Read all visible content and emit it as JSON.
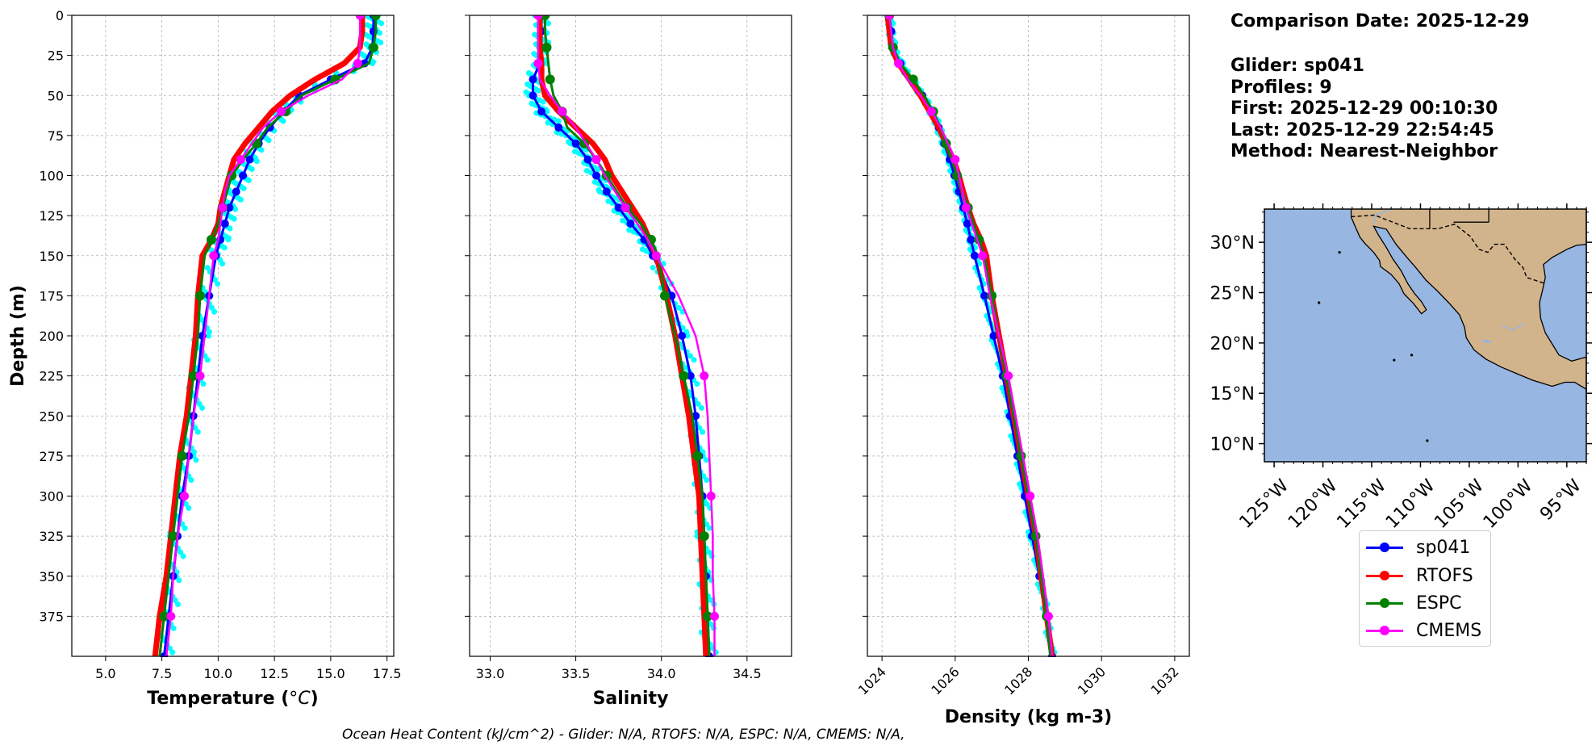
{
  "info": {
    "comparison_date": "Comparison Date: 2025-12-29",
    "glider": "Glider: sp041",
    "profiles": "Profiles: 9",
    "first": "First: 2025-12-29 00:10:30",
    "last": "Last: 2025-12-29 22:54:45",
    "method": "Method: Nearest-Neighbor"
  },
  "footer": {
    "ohc": "Ocean Heat Content (kJ/cm^2) - Glider: N/A,  RTOFS: N/A,  ESPC: N/A,  CMEMS: N/A,"
  },
  "colors": {
    "glider": "#0000ff",
    "glider_raw": "#00ffff",
    "rtofs": "#ff0000",
    "espc": "#008000",
    "cmems": "#ff00ff",
    "ocean": "#97b6e1",
    "land": "#d2b48c"
  },
  "legend": [
    {
      "label": "sp041",
      "color": "#0000ff"
    },
    {
      "label": "RTOFS",
      "color": "#ff0000"
    },
    {
      "label": "ESPC",
      "color": "#008000"
    },
    {
      "label": "CMEMS",
      "color": "#ff00ff"
    }
  ],
  "chart_data": [
    {
      "type": "line",
      "xlabel": "Temperature (°C)",
      "ylabel": "Depth (m)",
      "xlim": [
        3.5,
        17.8
      ],
      "ylim": [
        400,
        0
      ],
      "xticks": [
        5.0,
        7.5,
        10.0,
        12.5,
        15.0,
        17.5
      ],
      "xtick_labels": [
        "5.0",
        "7.5",
        "10.0",
        "12.5",
        "15.0",
        "17.5"
      ],
      "yticks": [
        0,
        25,
        50,
        75,
        100,
        125,
        150,
        175,
        200,
        225,
        250,
        275,
        300,
        325,
        350,
        375
      ],
      "ytick_labels": [
        "0",
        "25",
        "50",
        "75",
        "100",
        "125",
        "150",
        "175",
        "200",
        "225",
        "250",
        "275",
        "300",
        "325",
        "350",
        "375"
      ],
      "grid": true,
      "depths": [
        0,
        10,
        20,
        30,
        40,
        50,
        60,
        70,
        80,
        90,
        100,
        110,
        120,
        130,
        140,
        150,
        175,
        200,
        225,
        250,
        275,
        300,
        325,
        350,
        375,
        400
      ],
      "series": [
        {
          "name": "sp041",
          "values": [
            16.9,
            16.9,
            16.85,
            16.5,
            15.0,
            13.6,
            12.9,
            12.3,
            11.8,
            11.4,
            11.1,
            10.8,
            10.5,
            10.3,
            10.1,
            9.9,
            9.6,
            9.3,
            9.1,
            8.9,
            8.7,
            8.4,
            8.2,
            8.0,
            7.8,
            7.6
          ],
          "markers": true
        },
        {
          "name": "RTOFS",
          "values": [
            16.4,
            16.4,
            16.3,
            15.6,
            14.3,
            13.2,
            12.4,
            11.8,
            11.2,
            10.7,
            10.5,
            10.3,
            10.1,
            10.0,
            9.7,
            9.3,
            9.1,
            9.0,
            8.8,
            8.6,
            8.3,
            8.1,
            7.9,
            7.7,
            7.4,
            7.2
          ],
          "markers": false
        },
        {
          "name": "ESPC",
          "values": [
            17.0,
            17.0,
            16.9,
            16.7,
            15.2,
            13.7,
            13.0,
            12.2,
            11.7,
            11.1,
            10.6,
            10.4,
            10.2,
            10.0,
            9.7,
            9.4,
            9.2,
            9.1,
            8.9,
            8.7,
            8.4,
            8.2,
            8.0,
            7.8,
            7.6,
            7.4
          ],
          "markers": true
        },
        {
          "name": "CMEMS",
          "values": [
            16.3,
            16.3,
            16.3,
            16.2,
            15.5,
            14.0,
            12.8,
            12.0,
            11.5,
            11.0,
            10.5,
            10.3,
            10.2,
            10.1,
            10.0,
            9.8,
            9.6,
            9.4,
            9.2,
            8.9,
            8.7,
            8.5,
            8.2,
            8.0,
            7.9,
            7.7
          ],
          "markers": true
        }
      ]
    },
    {
      "type": "line",
      "xlabel": "Salinity",
      "ylabel": "",
      "xlim": [
        32.88,
        34.76
      ],
      "ylim": [
        400,
        0
      ],
      "xticks": [
        33.0,
        33.5,
        34.0,
        34.5
      ],
      "xtick_labels": [
        "33.0",
        "33.5",
        "34.0",
        "34.5"
      ],
      "grid": true,
      "depths": [
        0,
        10,
        20,
        30,
        40,
        50,
        60,
        70,
        80,
        90,
        100,
        110,
        120,
        130,
        140,
        150,
        175,
        200,
        225,
        250,
        275,
        300,
        325,
        350,
        375,
        400
      ],
      "series": [
        {
          "name": "sp041",
          "values": [
            33.3,
            33.3,
            33.3,
            33.29,
            33.25,
            33.25,
            33.3,
            33.4,
            33.5,
            33.57,
            33.62,
            33.68,
            33.75,
            33.82,
            33.9,
            33.95,
            34.06,
            34.12,
            34.17,
            34.2,
            34.22,
            34.24,
            34.25,
            34.26,
            34.27,
            34.28
          ],
          "markers": true
        },
        {
          "name": "RTOFS",
          "values": [
            33.29,
            33.29,
            33.29,
            33.3,
            33.3,
            33.32,
            33.4,
            33.5,
            33.6,
            33.67,
            33.71,
            33.77,
            33.83,
            33.89,
            33.93,
            33.97,
            34.03,
            34.08,
            34.12,
            34.16,
            34.19,
            34.22,
            34.23,
            34.24,
            34.25,
            34.26
          ],
          "markers": false
        },
        {
          "name": "ESPC",
          "values": [
            33.32,
            33.32,
            33.33,
            33.34,
            33.35,
            33.37,
            33.42,
            33.45,
            33.55,
            33.62,
            33.68,
            33.74,
            33.8,
            33.88,
            33.94,
            33.98,
            34.02,
            34.08,
            34.13,
            34.18,
            34.21,
            34.24,
            34.25,
            34.26,
            34.27,
            34.28
          ],
          "markers": true
        },
        {
          "name": "CMEMS",
          "values": [
            33.28,
            33.28,
            33.28,
            33.28,
            33.29,
            33.35,
            33.42,
            33.5,
            33.56,
            33.62,
            33.67,
            33.73,
            33.79,
            33.86,
            33.92,
            33.97,
            34.1,
            34.2,
            34.25,
            34.27,
            34.28,
            34.29,
            34.3,
            34.3,
            34.31,
            34.31
          ],
          "markers": true
        }
      ]
    },
    {
      "type": "line",
      "xlabel": "Density (kg m-3)",
      "ylabel": "",
      "xlim": [
        1023.6,
        1032.4
      ],
      "ylim": [
        400,
        0
      ],
      "xticks": [
        1024,
        1026,
        1028,
        1030,
        1032
      ],
      "xtick_labels": [
        "1024",
        "1026",
        "1028",
        "1030",
        "1032"
      ],
      "grid": true,
      "depths": [
        0,
        10,
        20,
        30,
        40,
        50,
        60,
        70,
        80,
        90,
        100,
        110,
        120,
        130,
        140,
        150,
        175,
        200,
        225,
        250,
        275,
        300,
        325,
        350,
        375,
        400
      ],
      "series": [
        {
          "name": "sp041",
          "values": [
            1024.2,
            1024.25,
            1024.3,
            1024.5,
            1024.8,
            1025.1,
            1025.35,
            1025.55,
            1025.7,
            1025.85,
            1025.98,
            1026.1,
            1026.22,
            1026.33,
            1026.43,
            1026.53,
            1026.8,
            1027.05,
            1027.3,
            1027.5,
            1027.7,
            1027.9,
            1028.1,
            1028.3,
            1028.5,
            1028.65
          ],
          "markers": true
        },
        {
          "name": "RTOFS",
          "values": [
            1024.15,
            1024.2,
            1024.25,
            1024.45,
            1024.75,
            1025.05,
            1025.3,
            1025.55,
            1025.75,
            1025.95,
            1026.1,
            1026.22,
            1026.35,
            1026.5,
            1026.7,
            1026.85,
            1027.0,
            1027.2,
            1027.4,
            1027.6,
            1027.8,
            1028.0,
            1028.2,
            1028.35,
            1028.5,
            1028.65
          ],
          "markers": false
        },
        {
          "name": "ESPC",
          "values": [
            1024.2,
            1024.25,
            1024.3,
            1024.5,
            1024.85,
            1025.15,
            1025.4,
            1025.6,
            1025.75,
            1025.9,
            1026.05,
            1026.2,
            1026.35,
            1026.5,
            1026.65,
            1026.8,
            1027.0,
            1027.2,
            1027.4,
            1027.6,
            1027.8,
            1028.0,
            1028.2,
            1028.35,
            1028.5,
            1028.6
          ],
          "markers": true
        },
        {
          "name": "CMEMS",
          "values": [
            1024.2,
            1024.25,
            1024.3,
            1024.45,
            1024.7,
            1025.05,
            1025.35,
            1025.6,
            1025.8,
            1026.0,
            1026.1,
            1026.2,
            1026.3,
            1026.45,
            1026.6,
            1026.75,
            1026.95,
            1027.2,
            1027.45,
            1027.65,
            1027.85,
            1028.05,
            1028.25,
            1028.4,
            1028.55,
            1028.65
          ],
          "markers": true
        }
      ]
    }
  ],
  "map": {
    "lat_labels": [
      "30°N",
      "25°N",
      "20°N",
      "15°N",
      "10°N"
    ],
    "lat_values": [
      30,
      25,
      20,
      15,
      10
    ],
    "lon_labels": [
      "125°W",
      "120°W",
      "115°W",
      "110°W",
      "105°W",
      "100°W",
      "95°W"
    ],
    "lon_values": [
      -125,
      -120,
      -115,
      -110,
      -105,
      -100,
      -95
    ],
    "lat_range": [
      8.2,
      33.3
    ],
    "lon_range": [
      -126,
      -93
    ]
  }
}
